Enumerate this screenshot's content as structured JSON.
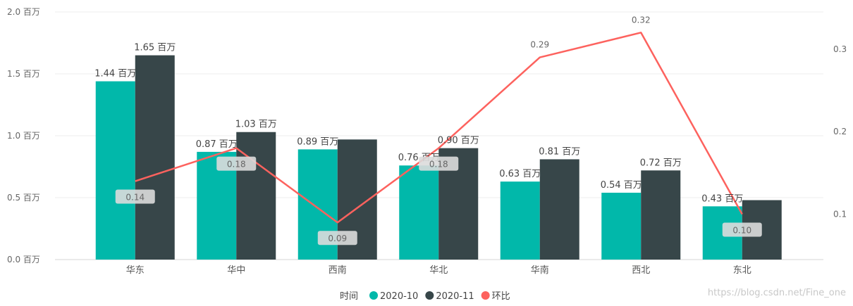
{
  "chart_data": {
    "type": "bar",
    "categories": [
      "华东",
      "华中",
      "西南",
      "华北",
      "华南",
      "西北",
      "东北"
    ],
    "series": [
      {
        "name": "2020-10",
        "kind": "bar",
        "axis": "left",
        "color": "#01B8AA",
        "values": [
          1.44,
          0.87,
          0.89,
          0.76,
          0.63,
          0.54,
          0.43
        ],
        "labels": [
          "1.44 百万",
          "0.87 百万",
          "0.89 百万",
          "0.76 百万",
          "0.63 百万",
          "0.54 百万",
          "0.43 百万"
        ]
      },
      {
        "name": "2020-11",
        "kind": "bar",
        "axis": "left",
        "color": "#374649",
        "values": [
          1.65,
          1.03,
          0.97,
          0.9,
          0.81,
          0.72,
          0.48
        ],
        "labels": [
          "1.65 百万",
          "1.03 百万",
          "",
          "0.90 百万",
          "0.81 百万",
          "0.72 百万",
          ""
        ]
      },
      {
        "name": "环比",
        "kind": "line",
        "axis": "right",
        "color": "#FD625E",
        "values": [
          0.14,
          0.18,
          0.09,
          0.18,
          0.29,
          0.32,
          0.1
        ],
        "labels": [
          "0.14",
          "0.18",
          "0.09",
          "0.18",
          "0.29",
          "0.32",
          "0.10"
        ],
        "boxed": [
          true,
          true,
          true,
          true,
          false,
          false,
          true
        ]
      }
    ],
    "y_left": {
      "ylim": [
        0,
        2.0
      ],
      "ticks": [
        0,
        0.5,
        1.0,
        1.5,
        2.0
      ],
      "tick_labels": [
        "0.0 百万",
        "0.5 百万",
        "1.0 百万",
        "1.5 百万",
        "2.0 百万"
      ]
    },
    "y_right": {
      "ylim": [
        0.045,
        0.345
      ],
      "ticks": [
        0.1,
        0.2,
        0.3
      ],
      "tick_labels": [
        "0.1",
        "0.2",
        "0.3"
      ]
    },
    "legend": {
      "title": "时间",
      "placement": "bottom-center",
      "items": [
        "2020-10",
        "2020-11",
        "环比"
      ]
    },
    "grid": true
  },
  "watermark": "https://blog.csdn.net/Fine_one"
}
